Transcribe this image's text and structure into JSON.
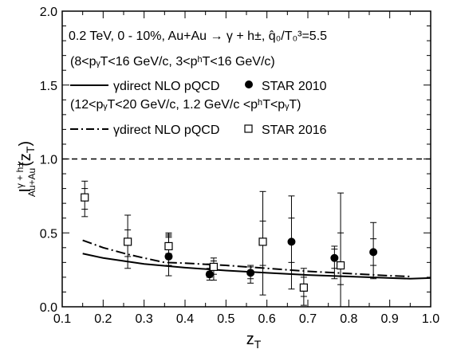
{
  "chart_data": {
    "type": "scatter",
    "xlabel": "z",
    "xlabel_sub": "T",
    "ylabel": "I",
    "ylabel_sup": "γ + h±",
    "ylabel_sub": "Au+Au",
    "ylabel_suffix": "(z",
    "ylabel_suffix_sub": "T",
    "ylabel_suffix_end": ")",
    "xlim": [
      0.1,
      1.0
    ],
    "ylim": [
      0.0,
      2.0
    ],
    "xticks": [
      "0.1",
      "0.2",
      "0.3",
      "0.4",
      "0.5",
      "0.6",
      "0.7",
      "0.8",
      "0.9",
      "1.0"
    ],
    "yticks": [
      "0.0",
      "0.5",
      "1.0",
      "1.5",
      "2.0"
    ],
    "reference_line": {
      "y": 1.0,
      "style": "dashed"
    },
    "annotations": {
      "line1": "0.2 TeV, 0 - 10%, Au+Au → γ + h±, q̂₀/T₀³=5.5",
      "line2": "(8<pᵧT<16 GeV/c, 3<pʰT<16 GeV/c)",
      "line3": "(12<pᵧT<20 GeV/c, 1.2 GeV/c <pʰT<pᵧT)"
    },
    "legend": [
      {
        "label": "γdirect NLO pQCD",
        "style": "solid"
      },
      {
        "label": "STAR 2010",
        "marker": "filled-circle"
      },
      {
        "label": "γdirect NLO pQCD",
        "style": "dash-dot"
      },
      {
        "label": "STAR 2016",
        "marker": "open-square"
      }
    ],
    "series": [
      {
        "label": "γdirect NLO pQCD (8<pγT<16, 3<phT<16)",
        "kind": "line",
        "style": "solid",
        "x": [
          0.15,
          0.2,
          0.3,
          0.4,
          0.5,
          0.6,
          0.7,
          0.8,
          0.9,
          0.95,
          1.0
        ],
        "y": [
          0.36,
          0.33,
          0.29,
          0.265,
          0.245,
          0.23,
          0.215,
          0.205,
          0.195,
          0.19,
          0.195
        ]
      },
      {
        "label": "γdirect NLO pQCD (12<pγT<20, 1.2<phT<pγT)",
        "kind": "line",
        "style": "dash-dot",
        "x": [
          0.15,
          0.2,
          0.26,
          0.3,
          0.35,
          0.4,
          0.5,
          0.6,
          0.7,
          0.8,
          0.9,
          0.95
        ],
        "y": [
          0.45,
          0.4,
          0.355,
          0.33,
          0.3,
          0.295,
          0.28,
          0.26,
          0.24,
          0.225,
          0.21,
          0.205
        ]
      },
      {
        "label": "STAR 2010",
        "kind": "points",
        "marker": "filled-circle",
        "points": [
          {
            "x": 0.36,
            "y": 0.34,
            "lo": 0.21,
            "hi": 0.48,
            "syslo": 0.28,
            "syshi": 0.49
          },
          {
            "x": 0.46,
            "y": 0.22,
            "lo": 0.18,
            "hi": 0.29,
            "syslo": 0.2,
            "syshi": 0.26
          },
          {
            "x": 0.56,
            "y": 0.23,
            "lo": 0.16,
            "hi": 0.28,
            "syslo": 0.19,
            "syshi": 0.27
          },
          {
            "x": 0.66,
            "y": 0.44,
            "lo": 0.12,
            "hi": 0.75,
            "syslo": 0.3,
            "syshi": 0.6
          },
          {
            "x": 0.765,
            "y": 0.33,
            "lo": 0.19,
            "hi": 0.41,
            "syslo": 0.26,
            "syshi": 0.39
          },
          {
            "x": 0.86,
            "y": 0.37,
            "lo": 0.19,
            "hi": 0.57,
            "syslo": 0.28,
            "syshi": 0.46
          }
        ]
      },
      {
        "label": "STAR 2016",
        "kind": "points",
        "marker": "open-square",
        "points": [
          {
            "x": 0.155,
            "y": 0.74,
            "lo": 0.61,
            "hi": 0.85,
            "syslo": 0.66,
            "syshi": 0.8
          },
          {
            "x": 0.26,
            "y": 0.44,
            "lo": 0.26,
            "hi": 0.62,
            "syslo": 0.34,
            "syshi": 0.52
          },
          {
            "x": 0.36,
            "y": 0.41,
            "lo": 0.33,
            "hi": 0.5,
            "syslo": 0.36,
            "syshi": 0.47
          },
          {
            "x": 0.47,
            "y": 0.27,
            "lo": 0.18,
            "hi": 0.33,
            "syslo": 0.22,
            "syshi": 0.31
          },
          {
            "x": 0.59,
            "y": 0.44,
            "lo": 0.08,
            "hi": 0.78,
            "syslo": 0.28,
            "syshi": 0.58
          },
          {
            "x": 0.69,
            "y": 0.13,
            "lo": 0.01,
            "hi": 0.26,
            "syslo": 0.07,
            "syshi": 0.2
          },
          {
            "x": 0.78,
            "y": 0.28,
            "lo": 0.0,
            "hi": 0.77,
            "syslo": 0.15,
            "syshi": 0.5
          }
        ]
      }
    ]
  }
}
